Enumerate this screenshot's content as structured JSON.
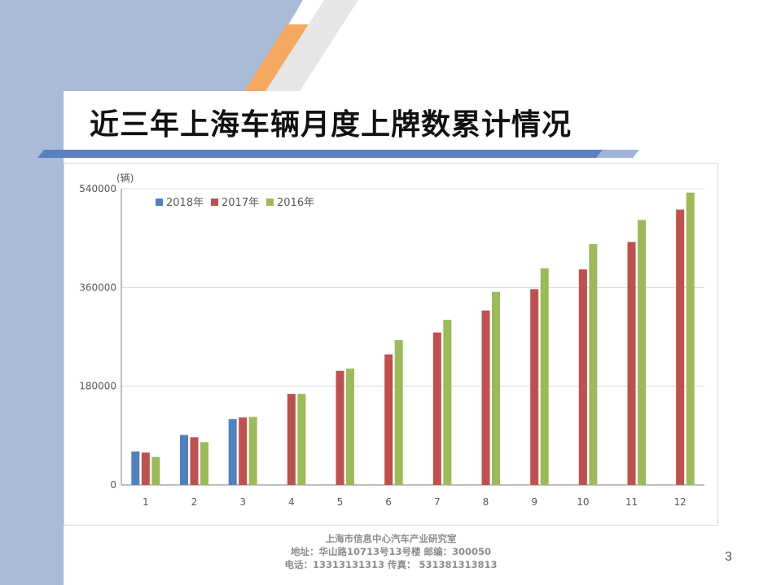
{
  "slide": {
    "title": "近三年上海车辆月度上牌数累计情况",
    "page_number": "3"
  },
  "footer": {
    "line1": "上海市信息中心汽车产业研究室",
    "line2": "地址：华山路10713号13号楼   邮编：300050",
    "line3": "电话：13313131313  传真： 531381313813"
  },
  "colors": {
    "series_2018": "#4f81bd",
    "series_2017": "#c0504d",
    "series_2016": "#9bbb59",
    "sidebar": "#a9bbd6",
    "accent_orange": "#f4a860",
    "accent_blue": "#5b80c0"
  },
  "chart_data": {
    "type": "bar",
    "unit_label": "(辆)",
    "categories": [
      "1",
      "2",
      "3",
      "4",
      "5",
      "6",
      "7",
      "8",
      "9",
      "10",
      "11",
      "12"
    ],
    "series": [
      {
        "name": "2018年",
        "color": "#4f81bd",
        "values": [
          61000,
          91000,
          120000,
          null,
          null,
          null,
          null,
          null,
          null,
          null,
          null,
          null
        ]
      },
      {
        "name": "2017年",
        "color": "#c0504d",
        "values": [
          59000,
          87000,
          123000,
          166000,
          208000,
          238000,
          278000,
          318000,
          357000,
          393000,
          443000,
          502000
        ]
      },
      {
        "name": "2016年",
        "color": "#9bbb59",
        "values": [
          51000,
          78000,
          124000,
          166000,
          212000,
          264000,
          301000,
          352000,
          395000,
          439000,
          483000,
          533000
        ]
      }
    ],
    "yticks": [
      0,
      180000,
      360000,
      540000
    ],
    "ylim": [
      0,
      540000
    ],
    "grid": true,
    "legend_position": "top-left"
  }
}
